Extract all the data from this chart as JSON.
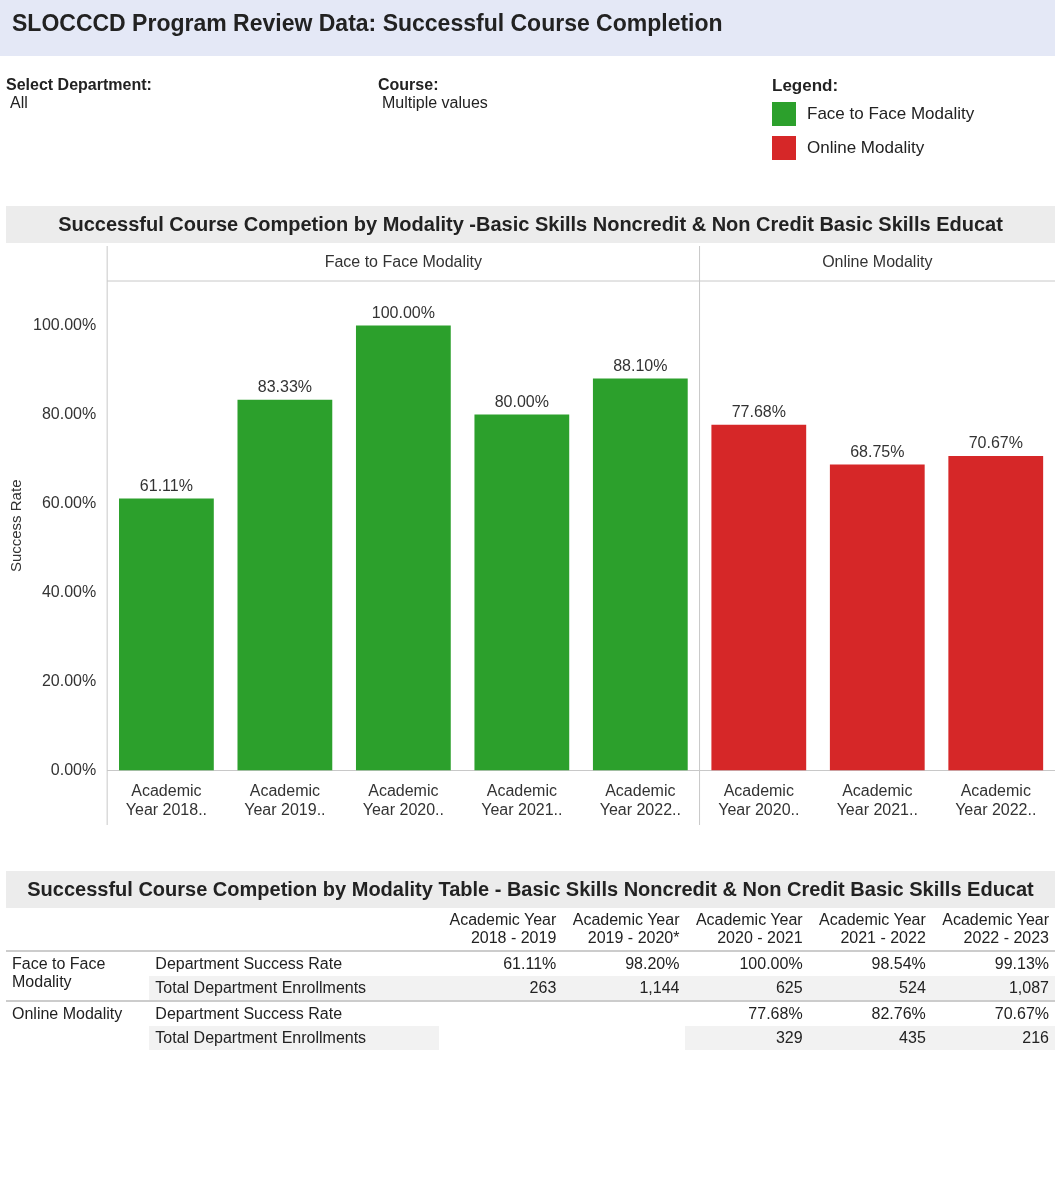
{
  "chart_data": [
    {
      "type": "bar",
      "title": "SLOCCCD Program Review Data: Successful Course Completion",
      "subtitle": "Successful Course Competion by Modality -Basic Skills Noncredit & Non Credit Basic Skills Educat",
      "annotations": [
        "Select Department:",
        "All",
        "Course:",
        "Multiple values"
      ],
      "legend_title": "Legend:",
      "legend": "top right",
      "ylabel": "Success Rate",
      "categories": [
        "Academic Year 2018..",
        "Academic Year 2019..",
        "Academic Year 2020..",
        "Academic Year 2021..",
        "Academic Year 2022..",
        "Academic Year 2020..",
        "Academic Year 2021..",
        "Academic Year 2022.."
      ],
      "series": [
        {
          "name": "Face to Face Modality",
          "color": "#2ca02c",
          "values": [
            61.11,
            83.33,
            100,
            80,
            88.1,
            null,
            null,
            null
          ],
          "value_labels": [
            "61.11%",
            "83.33%",
            "100.00%",
            "80.00%",
            "88.10%",
            null,
            null,
            null
          ]
        },
        {
          "name": "Online Modality",
          "color": "#d62728",
          "values": [
            null,
            null,
            null,
            null,
            null,
            77.68,
            68.75,
            70.67
          ],
          "value_labels": [
            null,
            null,
            null,
            null,
            null,
            "77.68%",
            "68.75%",
            "70.67%"
          ]
        }
      ],
      "ylim": [
        0,
        110
      ],
      "yticks": [
        {
          "value": 0,
          "label": "0.00%"
        },
        {
          "value": 20,
          "label": "20.00%"
        },
        {
          "value": 40,
          "label": "40.00%"
        },
        {
          "value": 60,
          "label": "60.00%"
        },
        {
          "value": 80,
          "label": "80.00%"
        },
        {
          "value": 100,
          "label": "100.00%"
        }
      ],
      "grid": false
    },
    {
      "type": "other",
      "title": "Successful Course Competion by Modality Table - Basic Skills Noncredit & Non Credit Basic Skills Educat",
      "categories": [
        "Academic Year 2018 - 2019",
        "Academic Year 2019 - 2020*",
        "Academic Year 2020 - 2021",
        "Academic Year 2021 - 2022",
        "Academic Year 2022 - 2023"
      ],
      "annotations": [
        "Face to Face Modality",
        "Online Modality"
      ],
      "y_categories": [
        "Department Success Rate",
        "Total Department Enrollments",
        "Department Success Rate",
        "Total Department Enrollments"
      ],
      "cell_labels": [
        [
          "61.11%",
          "98.20%",
          "100.00%",
          "98.54%",
          "99.13%"
        ],
        [
          "263",
          "1,144",
          "625",
          "524",
          "1,087"
        ],
        [
          null,
          null,
          "77.68%",
          "82.76%",
          "70.67%"
        ],
        [
          null,
          null,
          "329",
          "435",
          "216"
        ]
      ]
    }
  ]
}
